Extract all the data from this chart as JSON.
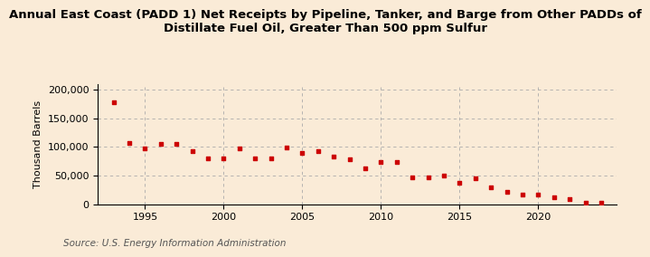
{
  "title": "Annual East Coast (PADD 1) Net Receipts by Pipeline, Tanker, and Barge from Other PADDs of\nDistillate Fuel Oil, Greater Than 500 ppm Sulfur",
  "ylabel": "Thousand Barrels",
  "source": "Source: U.S. Energy Information Administration",
  "background_color": "#faebd7",
  "plot_background_color": "#faebd7",
  "marker_color": "#cc0000",
  "grid_color": "#aaaaaa",
  "years": [
    1993,
    1994,
    1995,
    1996,
    1997,
    1998,
    1999,
    2000,
    2001,
    2002,
    2003,
    2004,
    2005,
    2006,
    2007,
    2008,
    2009,
    2010,
    2011,
    2012,
    2013,
    2014,
    2015,
    2016,
    2017,
    2018,
    2019,
    2020,
    2021,
    2022,
    2023,
    2024
  ],
  "values": [
    178000,
    107000,
    97000,
    106000,
    105000,
    93000,
    80000,
    80000,
    97000,
    80000,
    80000,
    99000,
    89000,
    92000,
    83000,
    79000,
    63000,
    74000,
    74000,
    46000,
    46000,
    50000,
    38000,
    45000,
    30000,
    21000,
    17000,
    16000,
    12000,
    9000,
    3000,
    2000
  ],
  "xlim": [
    1992,
    2025
  ],
  "ylim": [
    0,
    210000
  ],
  "yticks": [
    0,
    50000,
    100000,
    150000,
    200000
  ],
  "xticks": [
    1995,
    2000,
    2005,
    2010,
    2015,
    2020
  ],
  "title_fontsize": 9.5,
  "axis_fontsize": 8,
  "source_fontsize": 7.5
}
